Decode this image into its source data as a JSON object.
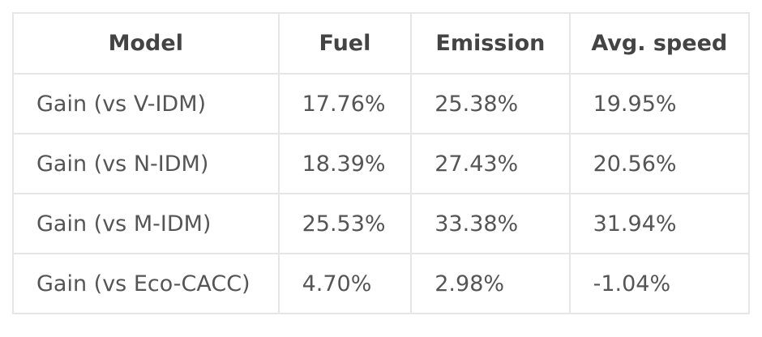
{
  "table": {
    "header": [
      "Model",
      "Fuel",
      "Emission",
      "Avg. speed"
    ],
    "rows": [
      [
        "Gain (vs V-IDM)",
        "17.76%",
        "25.38%",
        "19.95%"
      ],
      [
        "Gain (vs N-IDM)",
        "18.39%",
        "27.43%",
        "20.56%"
      ],
      [
        "Gain (vs M-IDM)",
        "25.53%",
        "33.38%",
        "31.94%"
      ],
      [
        "Gain (vs Eco-CACC)",
        "4.70%",
        "2.98%",
        "-1.04%"
      ]
    ]
  }
}
